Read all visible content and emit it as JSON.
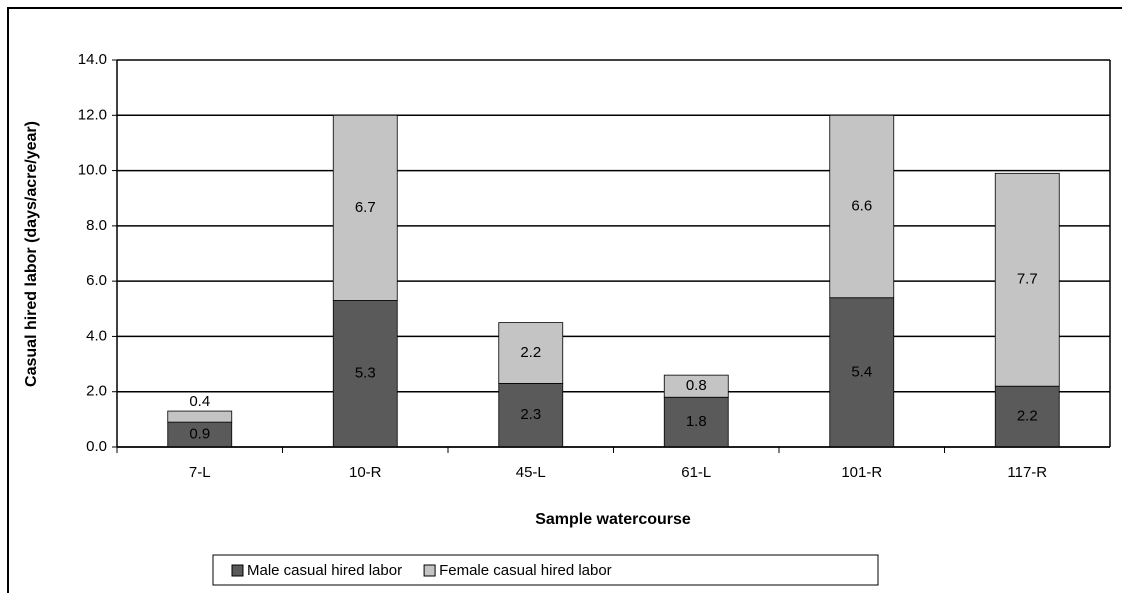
{
  "chart_data": {
    "type": "bar",
    "stacked": true,
    "ylabel": "Casual hired labor (days/acre/year)",
    "xlabel": "Sample watercourse",
    "categories": [
      "7-L",
      "10-R",
      "45-L",
      "61-L",
      "101-R",
      "117-R"
    ],
    "series": [
      {
        "name": "Male casual hired labor",
        "color": "#5a5a5a",
        "values": [
          0.9,
          5.3,
          2.3,
          1.8,
          5.4,
          2.2
        ]
      },
      {
        "name": "Female casual hired labor",
        "color": "#c4c4c4",
        "values": [
          0.4,
          6.7,
          2.2,
          0.8,
          6.6,
          7.7
        ]
      }
    ],
    "ylim": [
      0,
      14
    ],
    "yticks": [
      {
        "value": 0,
        "label": "0.0"
      },
      {
        "value": 2,
        "label": "2.0"
      },
      {
        "value": 4,
        "label": "4.0"
      },
      {
        "value": 6,
        "label": "6.0"
      },
      {
        "value": 8,
        "label": "8.0"
      },
      {
        "value": 10,
        "label": "10.0"
      },
      {
        "value": 12,
        "label": "12.0"
      },
      {
        "value": 14,
        "label": "14.0"
      }
    ],
    "grid": true,
    "legend": "bottom"
  }
}
